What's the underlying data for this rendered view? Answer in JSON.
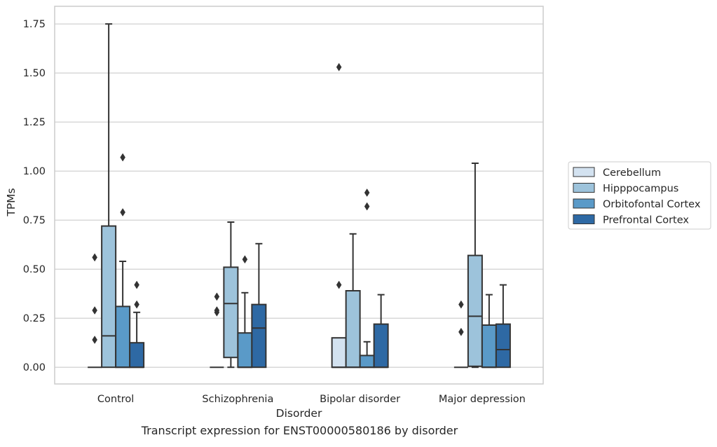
{
  "caption": "Transcript expression for ENST00000580186 by disorder",
  "chart_data": {
    "type": "box",
    "xlabel": "Disorder",
    "ylabel": "TPMs",
    "ylim": [
      -0.085,
      1.84
    ],
    "y_ticks": [
      "0.00",
      "0.25",
      "0.50",
      "0.75",
      "1.00",
      "1.25",
      "1.50",
      "1.75"
    ],
    "grid": "horizontal",
    "legend_position": "right",
    "categories": [
      "Control",
      "Schizophrenia",
      "Bipolar disorder",
      "Major depression"
    ],
    "series": [
      {
        "name": "Cerebellum",
        "color": "#d3e2f0",
        "boxes": [
          {
            "q1": 0,
            "median": 0,
            "q3": 0,
            "whisker_low": 0,
            "whisker_high": 0,
            "outliers": [
              0.14,
              0.29,
              0.56
            ]
          },
          {
            "q1": 0,
            "median": 0,
            "q3": 0,
            "whisker_low": 0,
            "whisker_high": 0,
            "outliers": [
              0.28,
              0.29,
              0.36
            ]
          },
          {
            "q1": 0,
            "median": 0,
            "q3": 0.15,
            "whisker_low": 0,
            "whisker_high": 0.15,
            "outliers": [
              0.42,
              1.53
            ]
          },
          {
            "q1": 0,
            "median": 0,
            "q3": 0,
            "whisker_low": 0,
            "whisker_high": 0,
            "outliers": [
              0.18,
              0.32
            ]
          }
        ]
      },
      {
        "name": "Hipppocampus",
        "color": "#9dc3db",
        "boxes": [
          {
            "q1": 0,
            "median": 0.16,
            "q3": 0.72,
            "whisker_low": 0,
            "whisker_high": 1.75,
            "outliers": []
          },
          {
            "q1": 0.05,
            "median": 0.325,
            "q3": 0.51,
            "whisker_low": 0,
            "whisker_high": 0.74,
            "outliers": []
          },
          {
            "q1": 0,
            "median": 0,
            "q3": 0.39,
            "whisker_low": 0,
            "whisker_high": 0.68,
            "outliers": []
          },
          {
            "q1": 0.005,
            "median": 0.26,
            "q3": 0.57,
            "whisker_low": 0,
            "whisker_high": 1.04,
            "outliers": []
          }
        ]
      },
      {
        "name": "Orbitofontal Cortex",
        "color": "#5a9ac8",
        "boxes": [
          {
            "q1": 0,
            "median": 0,
            "q3": 0.31,
            "whisker_low": 0,
            "whisker_high": 0.54,
            "outliers": [
              0.79,
              1.07
            ]
          },
          {
            "q1": 0,
            "median": 0,
            "q3": 0.175,
            "whisker_low": 0,
            "whisker_high": 0.38,
            "outliers": [
              0.55
            ]
          },
          {
            "q1": 0,
            "median": 0,
            "q3": 0.06,
            "whisker_low": 0,
            "whisker_high": 0.13,
            "outliers": [
              0.82,
              0.89
            ]
          },
          {
            "q1": 0,
            "median": 0,
            "q3": 0.215,
            "whisker_low": 0,
            "whisker_high": 0.37,
            "outliers": []
          }
        ]
      },
      {
        "name": "Prefrontal Cortex",
        "color": "#2e69a4",
        "boxes": [
          {
            "q1": 0,
            "median": 0,
            "q3": 0.125,
            "whisker_low": 0,
            "whisker_high": 0.28,
            "outliers": [
              0.32,
              0.42
            ]
          },
          {
            "q1": 0,
            "median": 0.2,
            "q3": 0.32,
            "whisker_low": 0,
            "whisker_high": 0.63,
            "outliers": []
          },
          {
            "q1": 0,
            "median": 0,
            "q3": 0.22,
            "whisker_low": 0,
            "whisker_high": 0.37,
            "outliers": []
          },
          {
            "q1": 0,
            "median": 0.09,
            "q3": 0.22,
            "whisker_low": 0,
            "whisker_high": 0.42,
            "outliers": []
          }
        ]
      }
    ]
  }
}
